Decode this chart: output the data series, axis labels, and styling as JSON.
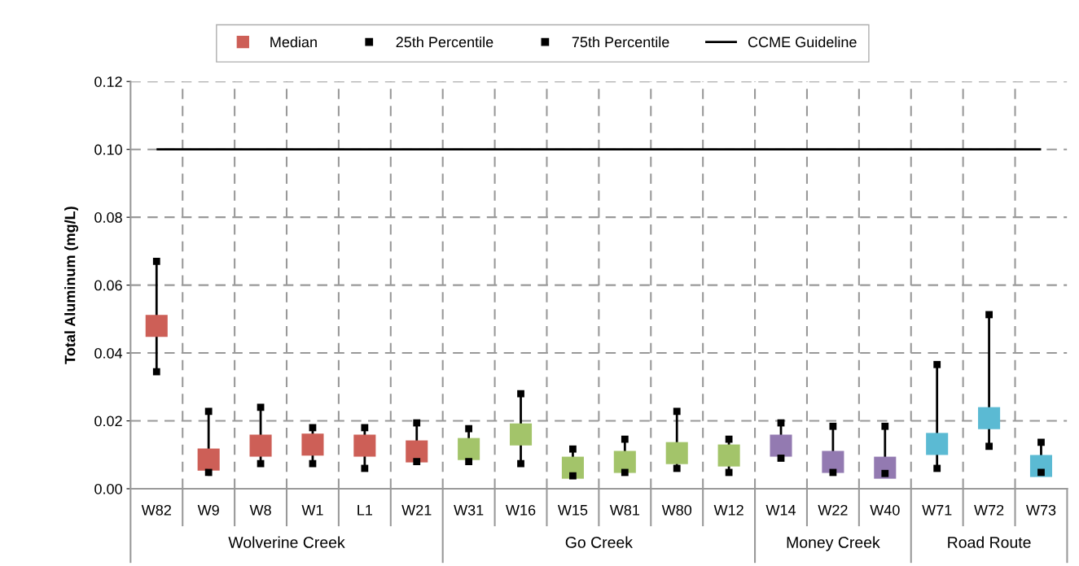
{
  "chart_data": {
    "type": "scatter",
    "ylabel": "Total Aluminum (mg/L)",
    "categories": [
      "W82",
      "W9",
      "W8",
      "W1",
      "L1",
      "W21",
      "W31",
      "W16",
      "W15",
      "W81",
      "W80",
      "W12",
      "W14",
      "W22",
      "W40",
      "W71",
      "W72",
      "W73"
    ],
    "annotations": [
      "Wolverine Creek",
      "Go Creek",
      "Money Creek",
      "Road Route"
    ],
    "series": [
      {
        "name": "Median",
        "marker": "square",
        "colors": [
          "#cd5f57",
          "#cd5f57",
          "#cd5f57",
          "#cd5f57",
          "#cd5f57",
          "#cd5f57",
          "#a3c46a",
          "#a3c46a",
          "#a3c46a",
          "#a3c46a",
          "#a3c46a",
          "#a3c46a",
          "#937ab1",
          "#937ab1",
          "#937ab1",
          "#5bbad3",
          "#5bbad3",
          "#5bbad3"
        ],
        "values": [
          0.048,
          0.0086,
          0.0127,
          0.013,
          0.0127,
          0.011,
          0.0117,
          0.016,
          0.0062,
          0.0079,
          0.0105,
          0.0098,
          0.0127,
          0.0079,
          0.0062,
          0.0132,
          0.0208,
          0.0067
        ],
        "type": "scatter"
      },
      {
        "name": "25th Percentile",
        "marker": "square",
        "color": "#000000",
        "values": [
          0.0345,
          0.0048,
          0.0074,
          0.0074,
          0.006,
          0.008,
          0.008,
          0.0074,
          0.0038,
          0.0048,
          0.006,
          0.0048,
          0.009,
          0.0048,
          0.0045,
          0.006,
          0.0125,
          0.0048
        ]
      },
      {
        "name": "75th Percentile",
        "marker": "square",
        "color": "#000000",
        "values": [
          0.067,
          0.0228,
          0.024,
          0.018,
          0.018,
          0.0194,
          0.0177,
          0.028,
          0.0117,
          0.0146,
          0.0228,
          0.0146,
          0.0194,
          0.0184,
          0.0184,
          0.0366,
          0.0513,
          0.0137
        ]
      }
    ],
    "ref_lines": [
      {
        "axis": "y",
        "value": 0.1,
        "label": "CCME Guideline",
        "color": "#000000",
        "line_style": "solid"
      }
    ],
    "ylim": [
      0,
      0.12
    ],
    "yticks": [
      {
        "value": 0,
        "label": "0.00"
      },
      {
        "value": 0.02,
        "label": "0.02"
      },
      {
        "value": 0.04,
        "label": "0.04"
      },
      {
        "value": 0.06,
        "label": "0.06"
      },
      {
        "value": 0.08,
        "label": "0.08"
      },
      {
        "value": 0.1,
        "label": "0.10"
      },
      {
        "value": 0.12,
        "label": "0.12"
      }
    ],
    "grid": true,
    "legend": "top"
  }
}
